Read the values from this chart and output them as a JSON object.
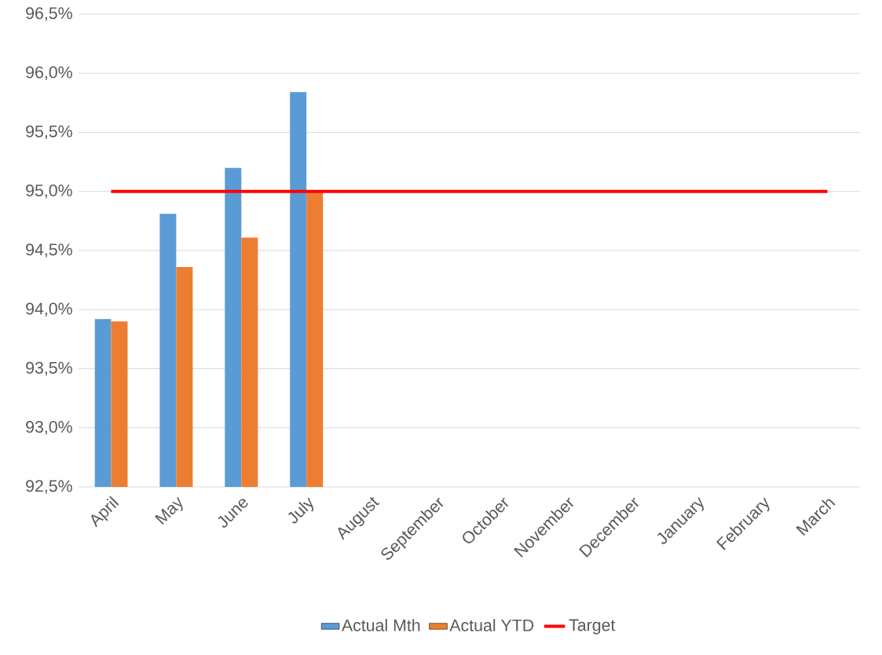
{
  "chart_data": {
    "type": "bar",
    "categories": [
      "April",
      "May",
      "June",
      "July",
      "August",
      "September",
      "October",
      "November",
      "December",
      "January",
      "February",
      "March"
    ],
    "series": [
      {
        "name": "Actual Mth",
        "color": "#5b9bd5",
        "values": [
          93.92,
          94.81,
          95.2,
          95.84,
          null,
          null,
          null,
          null,
          null,
          null,
          null,
          null
        ]
      },
      {
        "name": "Actual YTD",
        "color": "#ed7d31",
        "values": [
          93.9,
          94.36,
          94.61,
          95.0,
          null,
          null,
          null,
          null,
          null,
          null,
          null,
          null
        ]
      },
      {
        "name": "Target",
        "type": "line",
        "color": "#ff0000",
        "values": [
          95,
          95,
          95,
          95,
          95,
          95,
          95,
          95,
          95,
          95,
          95,
          95
        ]
      }
    ],
    "ylim": [
      92.5,
      96.5
    ],
    "yticks": [
      {
        "value": 92.5,
        "label": "92,5%"
      },
      {
        "value": 93.0,
        "label": "93,0%"
      },
      {
        "value": 93.5,
        "label": "93,5%"
      },
      {
        "value": 94.0,
        "label": "94,0%"
      },
      {
        "value": 94.5,
        "label": "94,5%"
      },
      {
        "value": 95.0,
        "label": "95,0%"
      },
      {
        "value": 95.5,
        "label": "95,5%"
      },
      {
        "value": 96.0,
        "label": "96,0%"
      },
      {
        "value": 96.5,
        "label": "96,5%"
      }
    ],
    "grid": "y",
    "legend": "bottom",
    "marker": "none"
  }
}
